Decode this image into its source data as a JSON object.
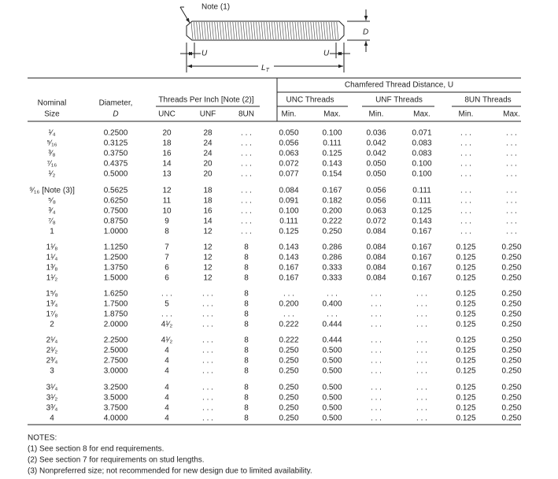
{
  "diagram": {
    "note": "Note (1)",
    "d": "D",
    "u_left": "U",
    "u_right": "U",
    "lt": {
      "main": "L",
      "sub": "T"
    }
  },
  "table": {
    "header": {
      "chamfered": "Chamfered Thread Distance, U",
      "nominal": "Nominal",
      "size": "Size",
      "diameter": "Diameter,",
      "diameter_d": "D",
      "tpi": "Threads Per Inch [Note (2)]",
      "unc_threads": "UNC Threads",
      "unf_threads": "UNF Threads",
      "un8_threads": "8UN Threads",
      "columns": [
        "UNC",
        "UNF",
        "8UN",
        "Min.",
        "Max.",
        "Min.",
        "Max.",
        "Min.",
        "Max."
      ]
    },
    "groups": [
      [
        [
          "¹⁄₄",
          "0.2500",
          "20",
          "28",
          ". . .",
          "0.050",
          "0.100",
          "0.036",
          "0.071",
          ". . .",
          ". . ."
        ],
        [
          "⁵⁄₁₆",
          "0.3125",
          "18",
          "24",
          ". . .",
          "0.056",
          "0.111",
          "0.042",
          "0.083",
          ". . .",
          ". . ."
        ],
        [
          "³⁄₈",
          "0.3750",
          "16",
          "24",
          ". . .",
          "0.063",
          "0.125",
          "0.042",
          "0.083",
          ". . .",
          ". . ."
        ],
        [
          "⁷⁄₁₆",
          "0.4375",
          "14",
          "20",
          ". . .",
          "0.072",
          "0.143",
          "0.050",
          "0.100",
          ". . .",
          ". . ."
        ],
        [
          "¹⁄₂",
          "0.5000",
          "13",
          "20",
          ". . .",
          "0.077",
          "0.154",
          "0.050",
          "0.100",
          ". . .",
          ". . ."
        ]
      ],
      [
        [
          "⁹⁄₁₆ [Note (3)]",
          "0.5625",
          "12",
          "18",
          ". . .",
          "0.084",
          "0.167",
          "0.056",
          "0.111",
          ". . .",
          ". . ."
        ],
        [
          "⁵⁄₈",
          "0.6250",
          "11",
          "18",
          ". . .",
          "0.091",
          "0.182",
          "0.056",
          "0.111",
          ". . .",
          ". . ."
        ],
        [
          "³⁄₄",
          "0.7500",
          "10",
          "16",
          ". . .",
          "0.100",
          "0.200",
          "0.063",
          "0.125",
          ". . .",
          ". . ."
        ],
        [
          "⁷⁄₈",
          "0.8750",
          "9",
          "14",
          ". . .",
          "0.111",
          "0.222",
          "0.072",
          "0.143",
          ". . .",
          ". . ."
        ],
        [
          "1",
          "1.0000",
          "8",
          "12",
          ". . .",
          "0.125",
          "0.250",
          "0.084",
          "0.167",
          ". . .",
          ". . ."
        ]
      ],
      [
        [
          "1¹⁄₈",
          "1.1250",
          "7",
          "12",
          "8",
          "0.143",
          "0.286",
          "0.084",
          "0.167",
          "0.125",
          "0.250"
        ],
        [
          "1¹⁄₄",
          "1.2500",
          "7",
          "12",
          "8",
          "0.143",
          "0.286",
          "0.084",
          "0.167",
          "0.125",
          "0.250"
        ],
        [
          "1³⁄₈",
          "1.3750",
          "6",
          "12",
          "8",
          "0.167",
          "0.333",
          "0.084",
          "0.167",
          "0.125",
          "0.250"
        ],
        [
          "1¹⁄₂",
          "1.5000",
          "6",
          "12",
          "8",
          "0.167",
          "0.333",
          "0.084",
          "0.167",
          "0.125",
          "0.250"
        ]
      ],
      [
        [
          "1⁵⁄₈",
          "1.6250",
          ". . .",
          ". . .",
          "8",
          ". . .",
          ". . .",
          ". . .",
          ". . .",
          "0.125",
          "0.250"
        ],
        [
          "1³⁄₄",
          "1.7500",
          "5",
          ". . .",
          "8",
          "0.200",
          "0.400",
          ". . .",
          ". . .",
          "0.125",
          "0.250"
        ],
        [
          "1⁷⁄₈",
          "1.8750",
          ". . .",
          ". . .",
          "8",
          ". . .",
          ". . .",
          ". . .",
          ". . .",
          "0.125",
          "0.250"
        ],
        [
          "2",
          "2.0000",
          "4¹⁄₂",
          ". . .",
          "8",
          "0.222",
          "0.444",
          ". . .",
          ". . .",
          "0.125",
          "0.250"
        ]
      ],
      [
        [
          "2¹⁄₄",
          "2.2500",
          "4¹⁄₂",
          ". . .",
          "8",
          "0.222",
          "0.444",
          ". . .",
          ". . .",
          "0.125",
          "0.250"
        ],
        [
          "2¹⁄₂",
          "2.5000",
          "4",
          ". . .",
          "8",
          "0.250",
          "0.500",
          ". . .",
          ". . .",
          "0.125",
          "0.250"
        ],
        [
          "2³⁄₄",
          "2.7500",
          "4",
          ". . .",
          "8",
          "0.250",
          "0.500",
          ". . .",
          ". . .",
          "0.125",
          "0.250"
        ],
        [
          "3",
          "3.0000",
          "4",
          ". . .",
          "8",
          "0.250",
          "0.500",
          ". . .",
          ". . .",
          "0.125",
          "0.250"
        ]
      ],
      [
        [
          "3¹⁄₄",
          "3.2500",
          "4",
          ". . .",
          "8",
          "0.250",
          "0.500",
          ". . .",
          ". . .",
          "0.125",
          "0.250"
        ],
        [
          "3¹⁄₂",
          "3.5000",
          "4",
          ". . .",
          "8",
          "0.250",
          "0.500",
          ". . .",
          ". . .",
          "0.125",
          "0.250"
        ],
        [
          "3³⁄₄",
          "3.7500",
          "4",
          ". . .",
          "8",
          "0.250",
          "0.500",
          ". . .",
          ". . .",
          "0.125",
          "0.250"
        ],
        [
          "4",
          "4.0000",
          "4",
          ". . .",
          "8",
          "0.250",
          "0.500",
          ". . .",
          ". . .",
          "0.125",
          "0.250"
        ]
      ]
    ]
  },
  "notes": {
    "title": "NOTES:",
    "items": [
      "(1) See section 8 for end requirements.",
      "(2) See section 7 for requirements on stud lengths.",
      "(3) Nonpreferred size; not recommended for new design due to limited availability."
    ]
  }
}
